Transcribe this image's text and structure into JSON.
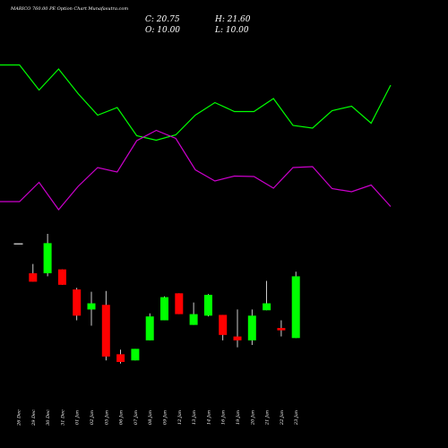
{
  "chart_data": {
    "type": "candlestick",
    "title": "MARICO 760.00 PE Option Chart Munafasutra.com",
    "ohlc": {
      "close_label": "C: 20.75",
      "high_label": "H: 21.60",
      "open_label": "O: 10.00",
      "low_label": "L: 10.00"
    },
    "dates": [
      "26 Dec",
      "29 Dec",
      "30 Dec",
      "31 Dec",
      "01 Jan",
      "02 Jan",
      "05 Jan",
      "06 Jan",
      "07 Jan",
      "08 Jan",
      "09 Jan",
      "12 Jan",
      "13 Jan",
      "14 Jan",
      "16 Jan",
      "19 Jan",
      "20 Jan",
      "21 Jan",
      "22 Jan",
      "23 Jan"
    ],
    "candles": [
      {
        "o": 28.5,
        "h": 28.5,
        "l": 28.5,
        "c": 28.5
      },
      {
        "o": 24.7,
        "h": 25.9,
        "l": 23.6,
        "c": 23.6
      },
      {
        "o": 24.7,
        "h": 29.8,
        "l": 24.3,
        "c": 28.6
      },
      {
        "o": 25.2,
        "h": 25.2,
        "l": 23.2,
        "c": 23.2
      },
      {
        "o": 22.6,
        "h": 22.8,
        "l": 18.6,
        "c": 19.2
      },
      {
        "o": 20.0,
        "h": 22.3,
        "l": 17.9,
        "c": 20.8
      },
      {
        "o": 20.6,
        "h": 22.4,
        "l": 13.4,
        "c": 13.9
      },
      {
        "o": 14.2,
        "h": 14.8,
        "l": 13.0,
        "c": 13.2
      },
      {
        "o": 13.4,
        "h": 14.9,
        "l": 13.4,
        "c": 14.9
      },
      {
        "o": 16.0,
        "h": 19.5,
        "l": 16.0,
        "c": 19.1
      },
      {
        "o": 18.6,
        "h": 21.7,
        "l": 18.6,
        "c": 21.6
      },
      {
        "o": 22.1,
        "h": 22.1,
        "l": 19.4,
        "c": 19.4
      },
      {
        "o": 18.0,
        "h": 20.9,
        "l": 18.0,
        "c": 19.4
      },
      {
        "o": 19.2,
        "h": 22.0,
        "l": 19.1,
        "c": 21.9
      },
      {
        "o": 19.3,
        "h": 19.3,
        "l": 16.0,
        "c": 16.7
      },
      {
        "o": 16.5,
        "h": 20.0,
        "l": 15.1,
        "c": 16.0
      },
      {
        "o": 16.0,
        "h": 20.0,
        "l": 15.4,
        "c": 19.2
      },
      {
        "o": 19.9,
        "h": 23.7,
        "l": 19.9,
        "c": 20.8
      },
      {
        "o": 17.6,
        "h": 18.6,
        "l": 16.5,
        "c": 17.3
      },
      {
        "o": 16.3,
        "h": 24.9,
        "l": 16.3,
        "c": 24.3
      }
    ],
    "ylim": [
      12.5,
      30.5
    ],
    "overlay_lines": [
      {
        "color": "#00ff00",
        "values": [
          72.5,
          72.5,
          100.5,
          77,
          104.5,
          128.5,
          120,
          151.5,
          156.5,
          150.5,
          128.5,
          114.5,
          124.5,
          124.5,
          110,
          140,
          143,
          123.5,
          118.5,
          137.5,
          95
        ]
      },
      {
        "color": "#cc00cc",
        "values": [
          225,
          225,
          203.5,
          234,
          208,
          187,
          192,
          157,
          145.5,
          154.5,
          189.5,
          202,
          196.5,
          197,
          210,
          187,
          186,
          210.5,
          214,
          206.5,
          230.5
        ]
      }
    ],
    "colors": {
      "up": "#00ff00",
      "down": "#ff0000",
      "wick": "#ffffff",
      "flat": "#bbbbbb",
      "background": "#000000",
      "text": "#ffffff"
    }
  }
}
